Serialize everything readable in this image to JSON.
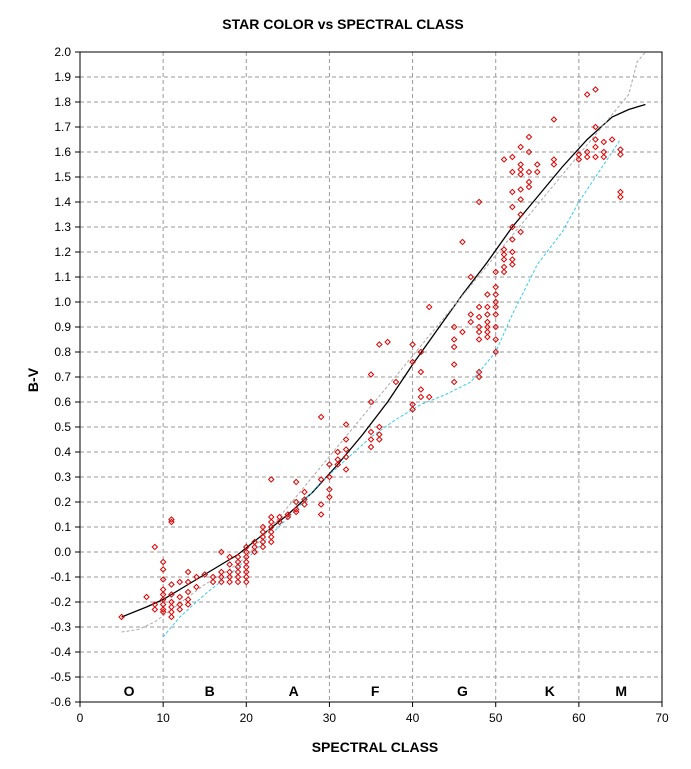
{
  "chart_data": {
    "type": "scatter",
    "title": "STAR COLOR vs SPECTRAL CLASS",
    "xlabel": "SPECTRAL CLASS",
    "ylabel": "B-V",
    "xlim": [
      0,
      70
    ],
    "ylim": [
      -0.6,
      2.0
    ],
    "x_ticks": [
      0,
      10,
      20,
      30,
      40,
      50,
      60,
      70
    ],
    "y_ticks": [
      -0.6,
      -0.5,
      -0.4,
      -0.3,
      -0.2,
      -0.1,
      0.0,
      0.1,
      0.2,
      0.3,
      0.4,
      0.5,
      0.6,
      0.7,
      0.8,
      0.9,
      1.0,
      1.1,
      1.2,
      1.3,
      1.4,
      1.5,
      1.6,
      1.7,
      1.8,
      1.9,
      2.0
    ],
    "grid": true,
    "class_labels": [
      {
        "text": "O",
        "x": 5.9
      },
      {
        "text": "B",
        "x": 15.6
      },
      {
        "text": "A",
        "x": 25.7
      },
      {
        "text": "F",
        "x": 35.5
      },
      {
        "text": "G",
        "x": 46.0
      },
      {
        "text": "K",
        "x": 56.5
      },
      {
        "text": "M",
        "x": 65.1
      }
    ],
    "series": [
      {
        "type": "scatter",
        "color": "#dd0000",
        "marker": "diamond-open",
        "points": [
          [
            5,
            -0.26
          ],
          [
            8,
            -0.18
          ],
          [
            9,
            0.02
          ],
          [
            9,
            -0.21
          ],
          [
            9,
            -0.23
          ],
          [
            10,
            -0.04
          ],
          [
            10,
            -0.07
          ],
          [
            10,
            -0.11
          ],
          [
            10,
            -0.15
          ],
          [
            10,
            -0.17
          ],
          [
            10,
            -0.19
          ],
          [
            10,
            -0.21
          ],
          [
            10,
            -0.23
          ],
          [
            10,
            -0.24
          ],
          [
            11,
            0.13
          ],
          [
            11,
            0.12
          ],
          [
            11,
            -0.13
          ],
          [
            11,
            -0.17
          ],
          [
            11,
            -0.2
          ],
          [
            11,
            -0.22
          ],
          [
            11,
            -0.24
          ],
          [
            11,
            -0.26
          ],
          [
            12,
            -0.12
          ],
          [
            12,
            -0.18
          ],
          [
            12,
            -0.21
          ],
          [
            12,
            -0.23
          ],
          [
            13,
            -0.08
          ],
          [
            13,
            -0.12
          ],
          [
            13,
            -0.16
          ],
          [
            13,
            -0.19
          ],
          [
            13,
            -0.21
          ],
          [
            14,
            -0.1
          ],
          [
            14,
            -0.14
          ],
          [
            15,
            -0.09
          ],
          [
            16,
            -0.1
          ],
          [
            16,
            -0.12
          ],
          [
            17,
            0.0
          ],
          [
            17,
            -0.08
          ],
          [
            17,
            -0.1
          ],
          [
            17,
            -0.12
          ],
          [
            18,
            -0.02
          ],
          [
            18,
            -0.05
          ],
          [
            18,
            -0.08
          ],
          [
            18,
            -0.1
          ],
          [
            18,
            -0.12
          ],
          [
            19,
            -0.02
          ],
          [
            19,
            -0.04
          ],
          [
            19,
            -0.06
          ],
          [
            19,
            -0.08
          ],
          [
            19,
            -0.1
          ],
          [
            19,
            -0.12
          ],
          [
            20,
            0.02
          ],
          [
            20,
            0.0
          ],
          [
            20,
            -0.02
          ],
          [
            20,
            -0.04
          ],
          [
            20,
            -0.06
          ],
          [
            20,
            -0.08
          ],
          [
            20,
            -0.1
          ],
          [
            20,
            -0.12
          ],
          [
            21,
            0.04
          ],
          [
            21,
            0.02
          ],
          [
            21,
            0.0
          ],
          [
            22,
            0.1
          ],
          [
            22,
            0.08
          ],
          [
            22,
            0.06
          ],
          [
            22,
            0.04
          ],
          [
            22,
            0.02
          ],
          [
            23,
            0.29
          ],
          [
            23,
            0.14
          ],
          [
            23,
            0.12
          ],
          [
            23,
            0.1
          ],
          [
            23,
            0.08
          ],
          [
            23,
            0.06
          ],
          [
            23,
            0.04
          ],
          [
            24,
            0.12
          ],
          [
            24,
            0.14
          ],
          [
            25,
            0.14
          ],
          [
            25,
            0.15
          ],
          [
            26,
            0.28
          ],
          [
            26,
            0.2
          ],
          [
            26,
            0.17
          ],
          [
            26,
            0.16
          ],
          [
            27,
            0.24
          ],
          [
            27,
            0.21
          ],
          [
            27,
            0.19
          ],
          [
            29,
            0.54
          ],
          [
            29,
            0.29
          ],
          [
            29,
            0.15
          ],
          [
            29,
            0.19
          ],
          [
            30,
            0.35
          ],
          [
            30,
            0.3
          ],
          [
            30,
            0.25
          ],
          [
            30,
            0.22
          ],
          [
            31,
            0.4
          ],
          [
            31,
            0.37
          ],
          [
            31,
            0.35
          ],
          [
            32,
            0.51
          ],
          [
            32,
            0.45
          ],
          [
            32,
            0.41
          ],
          [
            32,
            0.38
          ],
          [
            32,
            0.33
          ],
          [
            35,
            0.71
          ],
          [
            35,
            0.6
          ],
          [
            35,
            0.48
          ],
          [
            35,
            0.45
          ],
          [
            35,
            0.42
          ],
          [
            36,
            0.83
          ],
          [
            36,
            0.5
          ],
          [
            36,
            0.47
          ],
          [
            36,
            0.45
          ],
          [
            37,
            0.84
          ],
          [
            38,
            0.68
          ],
          [
            40,
            0.83
          ],
          [
            40,
            0.76
          ],
          [
            40,
            0.59
          ],
          [
            40,
            0.57
          ],
          [
            41,
            0.8
          ],
          [
            41,
            0.72
          ],
          [
            41,
            0.65
          ],
          [
            41,
            0.62
          ],
          [
            42,
            0.98
          ],
          [
            42,
            0.62
          ],
          [
            45,
            0.9
          ],
          [
            45,
            0.85
          ],
          [
            45,
            0.82
          ],
          [
            45,
            0.75
          ],
          [
            45,
            0.68
          ],
          [
            46,
            1.24
          ],
          [
            46,
            0.88
          ],
          [
            47,
            1.1
          ],
          [
            47,
            0.95
          ],
          [
            47,
            0.92
          ],
          [
            48,
            1.4
          ],
          [
            48,
            0.98
          ],
          [
            48,
            0.94
          ],
          [
            48,
            0.9
          ],
          [
            48,
            0.88
          ],
          [
            48,
            0.85
          ],
          [
            48,
            0.72
          ],
          [
            48,
            0.7
          ],
          [
            49,
            1.03
          ],
          [
            49,
            0.98
          ],
          [
            49,
            0.95
          ],
          [
            49,
            0.92
          ],
          [
            49,
            0.9
          ],
          [
            49,
            0.88
          ],
          [
            49,
            0.86
          ],
          [
            50,
            1.12
          ],
          [
            50,
            1.06
          ],
          [
            50,
            1.03
          ],
          [
            50,
            1.0
          ],
          [
            50,
            0.98
          ],
          [
            50,
            0.95
          ],
          [
            50,
            0.9
          ],
          [
            50,
            0.85
          ],
          [
            50,
            0.8
          ],
          [
            51,
            1.57
          ],
          [
            51,
            1.21
          ],
          [
            51,
            1.19
          ],
          [
            51,
            1.17
          ],
          [
            51,
            1.14
          ],
          [
            51,
            1.12
          ],
          [
            52,
            1.58
          ],
          [
            52,
            1.52
          ],
          [
            52,
            1.44
          ],
          [
            52,
            1.38
          ],
          [
            52,
            1.3
          ],
          [
            52,
            1.25
          ],
          [
            52,
            1.2
          ],
          [
            52,
            1.17
          ],
          [
            52,
            1.15
          ],
          [
            53,
            1.62
          ],
          [
            53,
            1.55
          ],
          [
            53,
            1.53
          ],
          [
            53,
            1.51
          ],
          [
            53,
            1.45
          ],
          [
            53,
            1.41
          ],
          [
            53,
            1.35
          ],
          [
            53,
            1.28
          ],
          [
            54,
            1.66
          ],
          [
            54,
            1.6
          ],
          [
            54,
            1.52
          ],
          [
            54,
            1.48
          ],
          [
            54,
            1.46
          ],
          [
            55,
            1.55
          ],
          [
            55,
            1.52
          ],
          [
            57,
            1.73
          ],
          [
            57,
            1.57
          ],
          [
            57,
            1.55
          ],
          [
            60,
            1.59
          ],
          [
            60,
            1.57
          ],
          [
            61,
            1.83
          ],
          [
            61,
            1.6
          ],
          [
            61,
            1.58
          ],
          [
            62,
            1.85
          ],
          [
            62,
            1.7
          ],
          [
            62,
            1.65
          ],
          [
            62,
            1.62
          ],
          [
            62,
            1.58
          ],
          [
            63,
            1.64
          ],
          [
            63,
            1.6
          ],
          [
            63,
            1.58
          ],
          [
            64,
            1.65
          ],
          [
            65,
            1.61
          ],
          [
            65,
            1.59
          ],
          [
            65,
            1.44
          ],
          [
            65,
            1.42
          ]
        ]
      },
      {
        "type": "line",
        "color": "#000000",
        "style": "solid",
        "points": [
          [
            5,
            -0.26
          ],
          [
            8,
            -0.22
          ],
          [
            10,
            -0.19
          ],
          [
            13,
            -0.13
          ],
          [
            16,
            -0.07
          ],
          [
            19,
            -0.01
          ],
          [
            22,
            0.07
          ],
          [
            25,
            0.15
          ],
          [
            28,
            0.24
          ],
          [
            31,
            0.35
          ],
          [
            34,
            0.47
          ],
          [
            37,
            0.6
          ],
          [
            40,
            0.75
          ],
          [
            43,
            0.89
          ],
          [
            46,
            1.03
          ],
          [
            49,
            1.16
          ],
          [
            52,
            1.3
          ],
          [
            55,
            1.42
          ],
          [
            58,
            1.54
          ],
          [
            61,
            1.65
          ],
          [
            64,
            1.74
          ],
          [
            66,
            1.77
          ],
          [
            68,
            1.79
          ]
        ]
      },
      {
        "type": "line",
        "color": "#33ccee",
        "style": "dashed",
        "points": [
          [
            10,
            -0.34
          ],
          [
            12,
            -0.26
          ],
          [
            15,
            -0.17
          ],
          [
            18,
            -0.09
          ],
          [
            20,
            -0.03
          ],
          [
            23,
            0.07
          ],
          [
            26,
            0.17
          ],
          [
            29,
            0.28
          ],
          [
            32,
            0.37
          ],
          [
            35,
            0.46
          ],
          [
            38,
            0.53
          ],
          [
            41,
            0.59
          ],
          [
            44,
            0.63
          ],
          [
            47,
            0.68
          ],
          [
            50,
            0.8
          ],
          [
            52,
            0.95
          ],
          [
            55,
            1.15
          ],
          [
            58,
            1.28
          ],
          [
            60,
            1.4
          ],
          [
            62,
            1.5
          ],
          [
            65,
            1.65
          ]
        ]
      },
      {
        "type": "line",
        "color": "#aaaaaa",
        "style": "dashed",
        "points": [
          [
            5,
            -0.32
          ],
          [
            7,
            -0.31
          ],
          [
            9,
            -0.28
          ],
          [
            11,
            -0.23
          ],
          [
            13,
            -0.18
          ],
          [
            15,
            -0.13
          ],
          [
            18,
            -0.07
          ],
          [
            20,
            -0.02
          ],
          [
            66,
            1.83
          ],
          [
            67,
            1.96
          ],
          [
            68,
            2.0
          ]
        ]
      }
    ]
  }
}
